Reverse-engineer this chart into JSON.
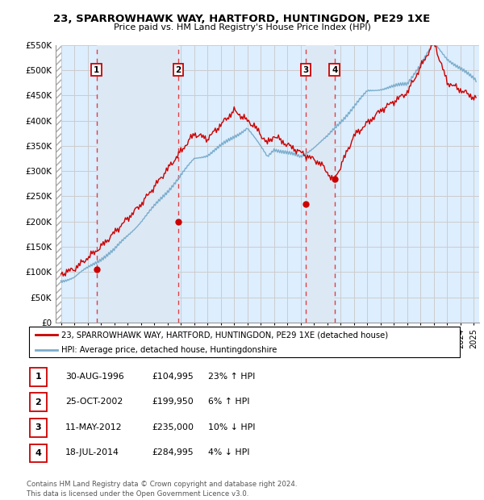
{
  "title": "23, SPARROWHAWK WAY, HARTFORD, HUNTINGDON, PE29 1XE",
  "subtitle": "Price paid vs. HM Land Registry's House Price Index (HPI)",
  "ylim": [
    0,
    550000
  ],
  "yticks": [
    0,
    50000,
    100000,
    150000,
    200000,
    250000,
    300000,
    350000,
    400000,
    450000,
    500000,
    550000
  ],
  "ytick_labels": [
    "£0",
    "£50K",
    "£100K",
    "£150K",
    "£200K",
    "£250K",
    "£300K",
    "£350K",
    "£400K",
    "£450K",
    "£500K",
    "£550K"
  ],
  "xlim_start": 1993.6,
  "xlim_end": 2025.4,
  "sale_dates": [
    1996.67,
    2002.82,
    2012.37,
    2014.54
  ],
  "sale_prices": [
    104995,
    199950,
    235000,
    284995
  ],
  "sale_labels": [
    "1",
    "2",
    "3",
    "4"
  ],
  "red_line_color": "#cc0000",
  "blue_line_color": "#7aadcc",
  "dashed_line_color": "#dd2222",
  "grid_color": "#cccccc",
  "bg_color": "#ddeeff",
  "bg_shaded_color": "#e8f0fa",
  "legend_line1": "23, SPARROWHAWK WAY, HARTFORD, HUNTINGDON, PE29 1XE (detached house)",
  "legend_line2": "HPI: Average price, detached house, Huntingdonshire",
  "table_data": [
    {
      "num": "1",
      "date": "30-AUG-1996",
      "price": "£104,995",
      "hpi": "23% ↑ HPI"
    },
    {
      "num": "2",
      "date": "25-OCT-2002",
      "price": "£199,950",
      "hpi": "6% ↑ HPI"
    },
    {
      "num": "3",
      "date": "11-MAY-2012",
      "price": "£235,000",
      "hpi": "10% ↓ HPI"
    },
    {
      "num": "4",
      "date": "18-JUL-2014",
      "price": "£284,995",
      "hpi": "4% ↓ HPI"
    }
  ],
  "footer": "Contains HM Land Registry data © Crown copyright and database right 2024.\nThis data is licensed under the Open Government Licence v3.0."
}
